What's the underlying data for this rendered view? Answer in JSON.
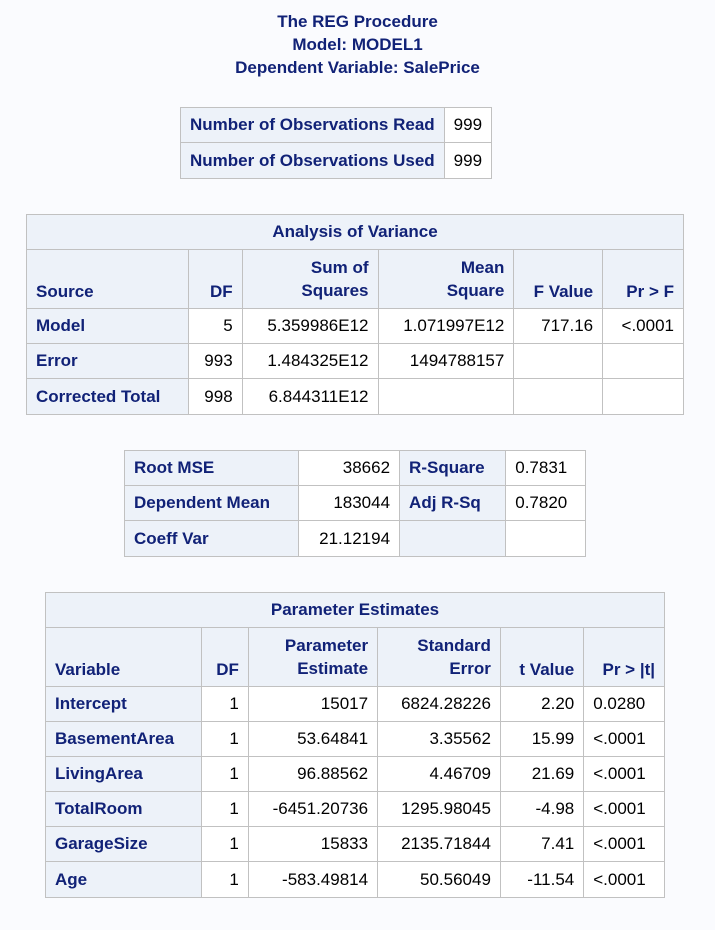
{
  "titles": [
    "The REG Procedure",
    "Model: MODEL1",
    "Dependent Variable: SalePrice"
  ],
  "observations": {
    "rows": [
      {
        "label": "Number of Observations Read",
        "value": "999"
      },
      {
        "label": "Number of Observations Used",
        "value": "999"
      }
    ]
  },
  "anova": {
    "caption": "Analysis of Variance",
    "headers": {
      "source": "Source",
      "df": "DF",
      "ss_top": "Sum of",
      "ss_bottom": "Squares",
      "ms_top": "Mean",
      "ms_bottom": "Square",
      "f": "F Value",
      "p": "Pr > F"
    },
    "rows": [
      {
        "source": "Model",
        "df": "5",
        "ss": "5.359986E12",
        "ms": "1.071997E12",
        "f": "717.16",
        "p": "<.0001"
      },
      {
        "source": "Error",
        "df": "993",
        "ss": "1.484325E12",
        "ms": "1494788157",
        "f": "",
        "p": ""
      },
      {
        "source": "Corrected Total",
        "df": "998",
        "ss": "6.844311E12",
        "ms": "",
        "f": "",
        "p": ""
      }
    ]
  },
  "fit": {
    "rows": [
      {
        "l1": "Root MSE",
        "v1": "38662",
        "l2": "R-Square",
        "v2": "0.7831"
      },
      {
        "l1": "Dependent Mean",
        "v1": "183044",
        "l2": "Adj R-Sq",
        "v2": "0.7820"
      },
      {
        "l1": "Coeff Var",
        "v1": "21.12194",
        "l2": "",
        "v2": ""
      }
    ]
  },
  "params": {
    "caption": "Parameter Estimates",
    "headers": {
      "variable": "Variable",
      "df": "DF",
      "est_top": "Parameter",
      "est_bottom": "Estimate",
      "se_top": "Standard",
      "se_bottom": "Error",
      "t": "t Value",
      "p": "Pr > |t|"
    },
    "rows": [
      {
        "variable": "Intercept",
        "df": "1",
        "est": "15017",
        "se": "6824.28226",
        "t": "2.20",
        "p": "0.0280"
      },
      {
        "variable": "BasementArea",
        "df": "1",
        "est": "53.64841",
        "se": "3.35562",
        "t": "15.99",
        "p": "<.0001"
      },
      {
        "variable": "LivingArea",
        "df": "1",
        "est": "96.88562",
        "se": "4.46709",
        "t": "21.69",
        "p": "<.0001"
      },
      {
        "variable": "TotalRoom",
        "df": "1",
        "est": "-6451.20736",
        "se": "1295.98045",
        "t": "-4.98",
        "p": "<.0001"
      },
      {
        "variable": "GarageSize",
        "df": "1",
        "est": "15833",
        "se": "2135.71844",
        "t": "7.41",
        "p": "<.0001"
      },
      {
        "variable": "Age",
        "df": "1",
        "est": "-583.49814",
        "se": "50.56049",
        "t": "-11.54",
        "p": "<.0001"
      }
    ]
  }
}
